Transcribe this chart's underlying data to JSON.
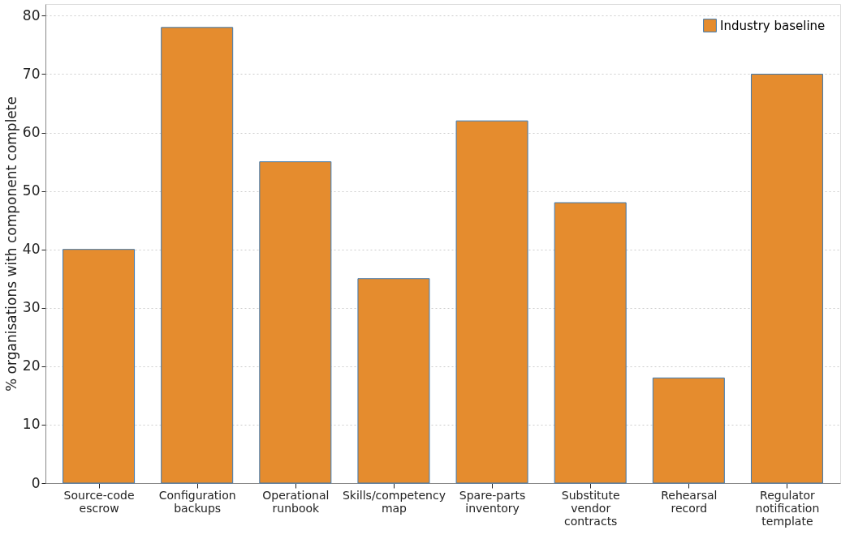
{
  "chart_data": {
    "type": "bar",
    "ylabel": "% organisations with component complete",
    "categories": [
      "Source-code escrow",
      "Configuration backups",
      "Operational runbook",
      "Skills/competency map",
      "Spare-parts inventory",
      "Substitute vendor contracts",
      "Rehearsal record",
      "Regulator notification template"
    ],
    "series": [
      {
        "name": "Industry baseline",
        "color": "#e58c2e",
        "values": [
          40,
          78,
          55,
          35,
          62,
          48,
          18,
          70
        ]
      }
    ],
    "ylim": [
      0,
      82
    ],
    "yticks": [
      0,
      10,
      20,
      30,
      40,
      50,
      60,
      70,
      80
    ],
    "grid": "y",
    "legend": "top right"
  }
}
